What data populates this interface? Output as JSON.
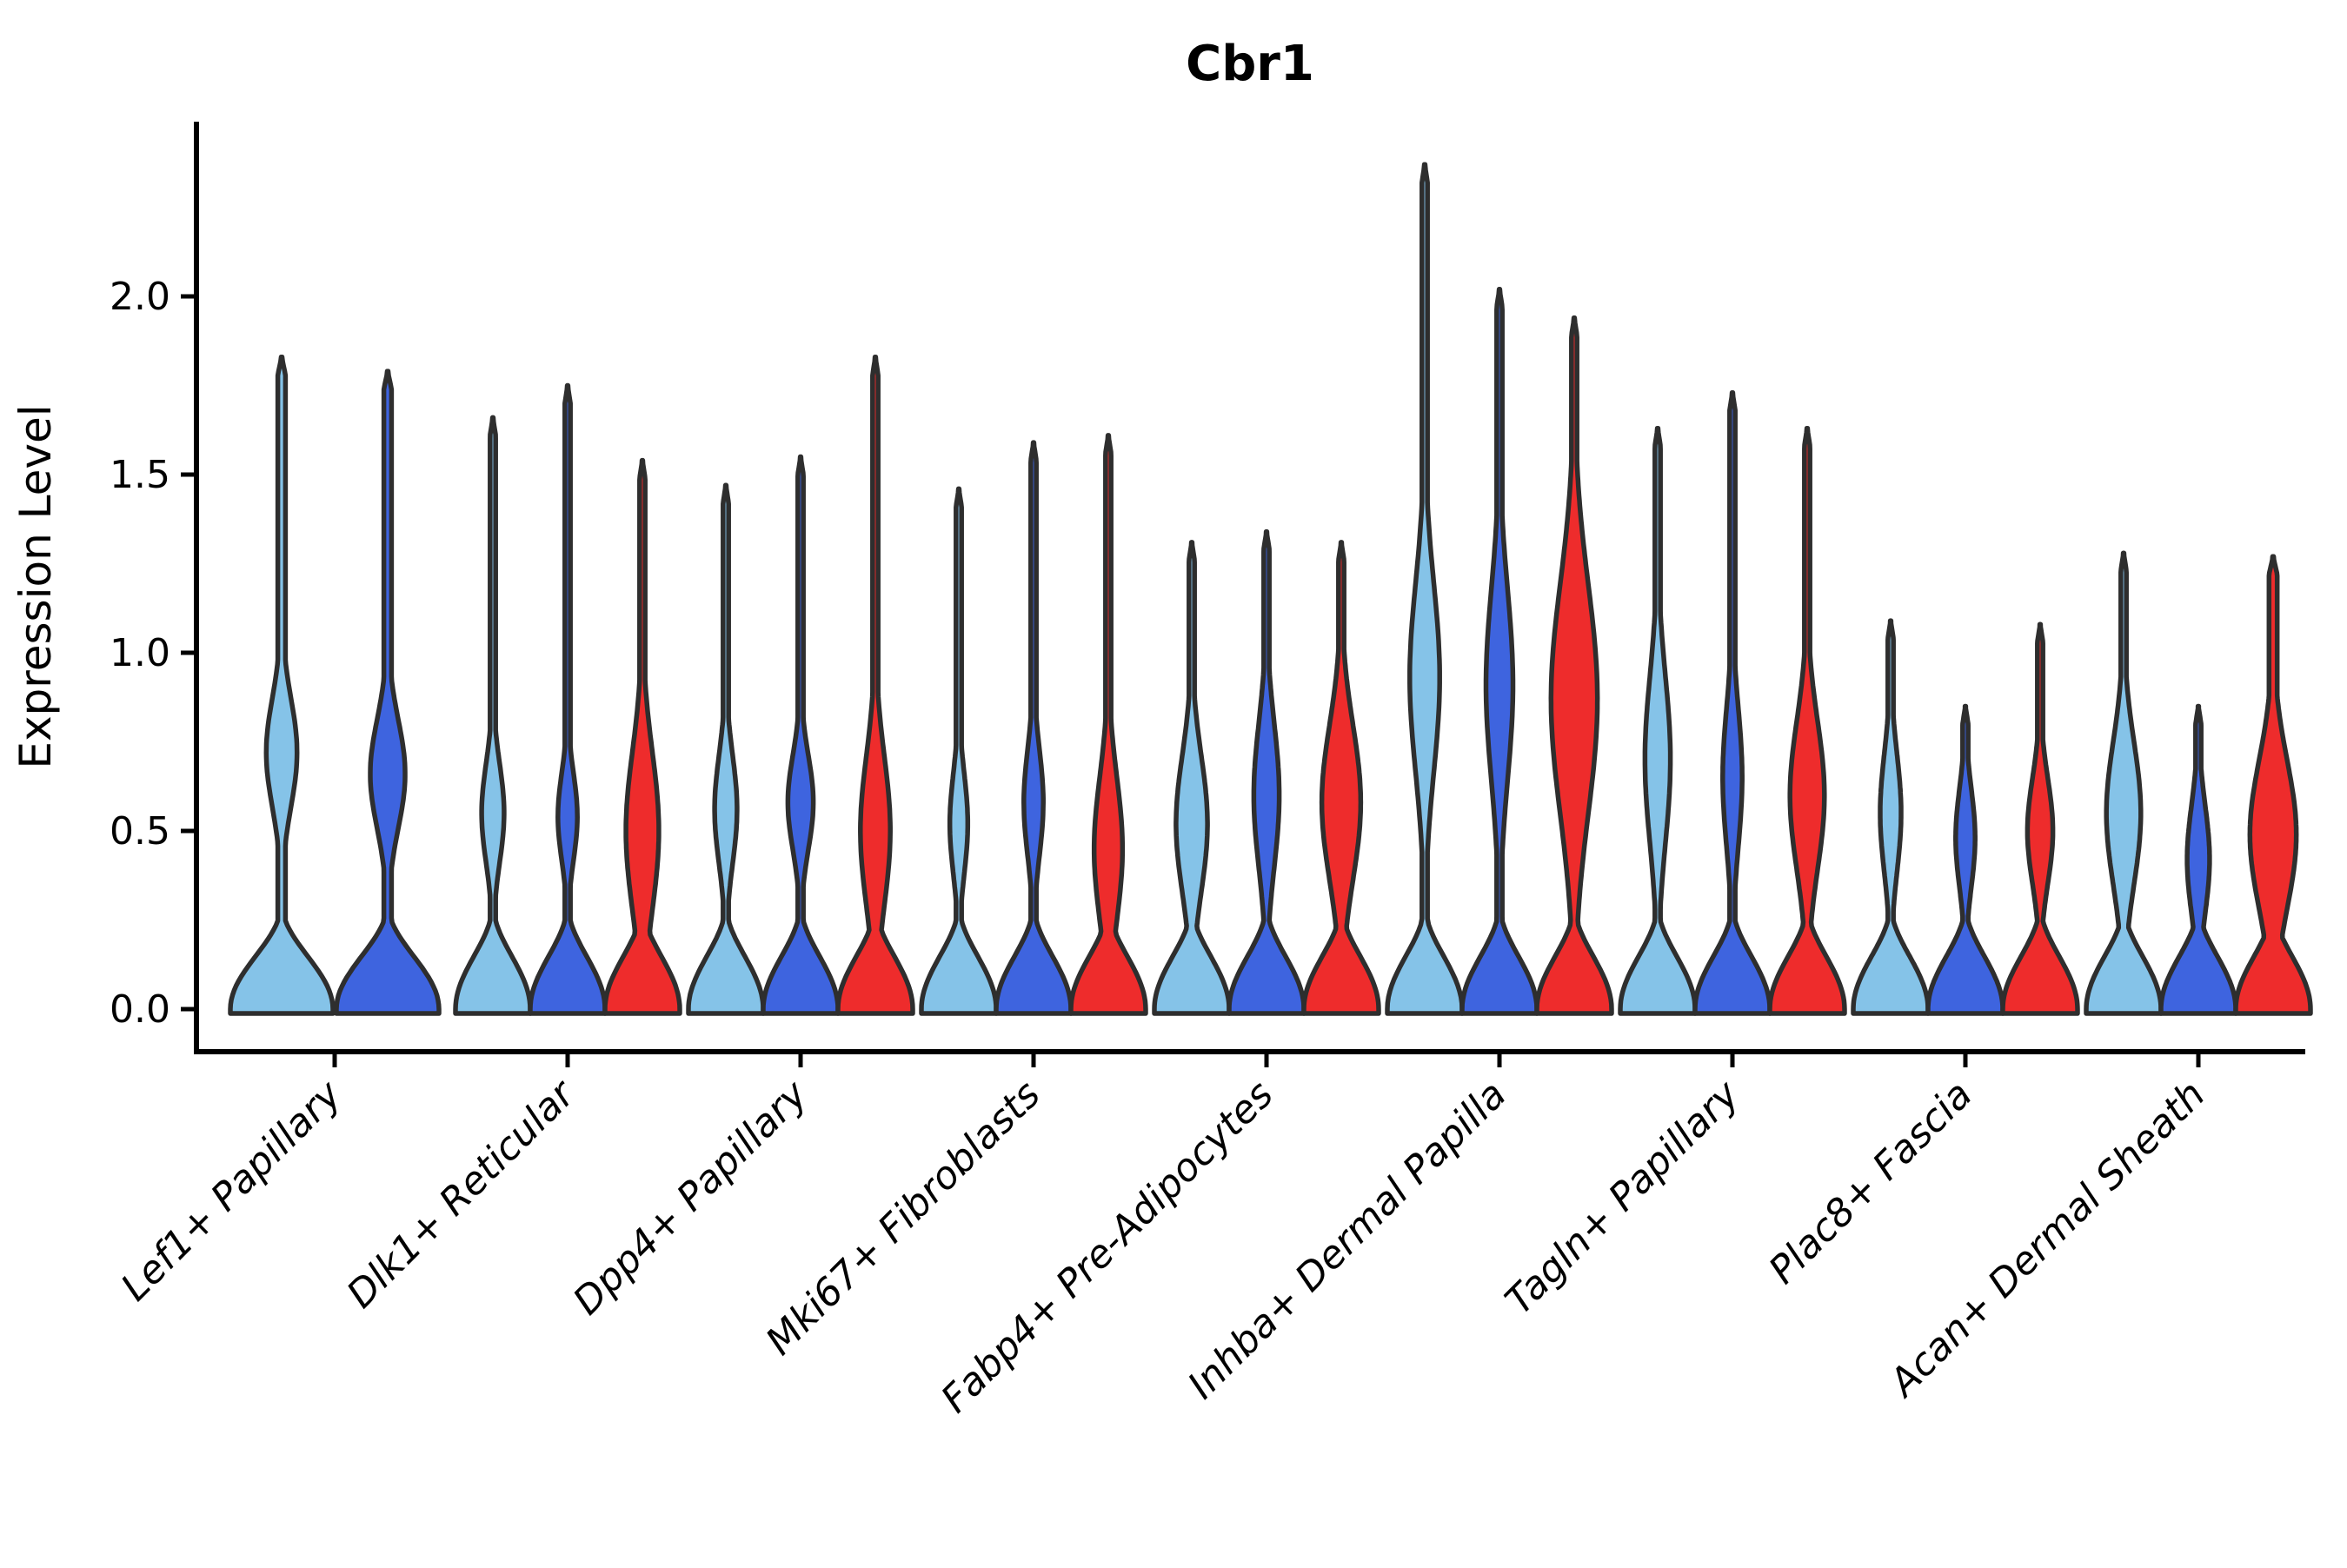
{
  "chart_data": {
    "type": "violin",
    "title": "Cbr1",
    "xlabel": "",
    "ylabel": "Expression Level",
    "ylim": [
      -0.12,
      2.49
    ],
    "yticks": [
      0.0,
      0.5,
      1.0,
      1.5,
      2.0
    ],
    "ytick_labels": [
      "0.0",
      "0.5",
      "1.0",
      "1.5",
      "2.0"
    ],
    "grid": false,
    "legend": "none",
    "series_colors": [
      "#85C3E8",
      "#3E64DF",
      "#EE2C2C"
    ],
    "series_names": [
      "light-blue",
      "dark-blue",
      "red"
    ],
    "outline_color": "#2E2E2E",
    "categories": [
      "Lef1+ Papillary",
      "Dlk1+ Reticular",
      "Dpp4+ Papillary",
      "Mki67+ Fibroblasts",
      "Fabp4+ Pre-Adipocytes",
      "Inhba+ Dermal Papilla",
      "Tagln+ Papillary",
      "Plac8+ Fascia",
      "Acan+ Dermal Sheath"
    ],
    "violins": [
      [
        {
          "series": 0,
          "max": 1.83,
          "bulge": [
            0.45,
            1.0
          ],
          "peak": 0.72,
          "width": 0.3
        },
        {
          "series": 1,
          "max": 1.79,
          "bulge": [
            0.4,
            0.95
          ],
          "peak": 0.66,
          "width": 0.34
        }
      ],
      [
        {
          "series": 0,
          "max": 1.66,
          "bulge": [
            0.3,
            0.8
          ],
          "peak": 0.55,
          "width": 0.3
        },
        {
          "series": 1,
          "max": 1.75,
          "bulge": [
            0.32,
            0.76
          ],
          "peak": 0.54,
          "width": 0.26
        },
        {
          "series": 2,
          "max": 1.54,
          "bulge": [
            0.21,
            1.01
          ],
          "peak": 0.5,
          "width": 0.44
        }
      ],
      [
        {
          "series": 0,
          "max": 1.47,
          "bulge": [
            0.29,
            0.84
          ],
          "peak": 0.56,
          "width": 0.3
        },
        {
          "series": 1,
          "max": 1.55,
          "bulge": [
            0.34,
            0.82
          ],
          "peak": 0.58,
          "width": 0.34
        },
        {
          "series": 2,
          "max": 1.83,
          "bulge": [
            0.23,
            0.98
          ],
          "peak": 0.5,
          "width": 0.4
        }
      ],
      [
        {
          "series": 0,
          "max": 1.46,
          "bulge": [
            0.26,
            0.77
          ],
          "peak": 0.52,
          "width": 0.24
        },
        {
          "series": 1,
          "max": 1.59,
          "bulge": [
            0.32,
            0.86
          ],
          "peak": 0.58,
          "width": 0.26
        },
        {
          "series": 2,
          "max": 1.61,
          "bulge": [
            0.22,
            0.94
          ],
          "peak": 0.45,
          "width": 0.38
        }
      ],
      [
        {
          "series": 0,
          "max": 1.31,
          "bulge": [
            0.24,
            0.93
          ],
          "peak": 0.52,
          "width": 0.42
        },
        {
          "series": 1,
          "max": 1.34,
          "bulge": [
            0.23,
            0.96
          ],
          "peak": 0.6,
          "width": 0.34
        },
        {
          "series": 2,
          "max": 1.31,
          "bulge": [
            0.21,
            0.99
          ],
          "peak": 0.58,
          "width": 0.52
        }
      ],
      [
        {
          "series": 0,
          "max": 2.37,
          "bulge": [
            0.33,
            1.29
          ],
          "peak": 0.93,
          "width": 0.4
        },
        {
          "series": 1,
          "max": 2.02,
          "bulge": [
            0.32,
            1.28
          ],
          "peak": 0.91,
          "width": 0.36
        },
        {
          "series": 2,
          "max": 1.94,
          "bulge": [
            0.24,
            1.4
          ],
          "peak": 0.87,
          "width": 0.62
        }
      ],
      [
        {
          "series": 0,
          "max": 1.63,
          "bulge": [
            0.3,
            1.15
          ],
          "peak": 0.7,
          "width": 0.34
        },
        {
          "series": 1,
          "max": 1.73,
          "bulge": [
            0.3,
            1.0
          ],
          "peak": 0.65,
          "width": 0.26
        },
        {
          "series": 2,
          "max": 1.63,
          "bulge": [
            0.25,
            1.0
          ],
          "peak": 0.6,
          "width": 0.46
        }
      ],
      [
        {
          "series": 0,
          "max": 1.09,
          "bulge": [
            0.3,
            0.9
          ],
          "peak": 0.55,
          "width": 0.28
        },
        {
          "series": 1,
          "max": 0.85,
          "bulge": [
            0.23,
            0.73
          ],
          "peak": 0.48,
          "width": 0.26
        },
        {
          "series": 2,
          "max": 1.08,
          "bulge": [
            0.25,
            0.78
          ],
          "peak": 0.5,
          "width": 0.34
        }
      ],
      [
        {
          "series": 0,
          "max": 1.28,
          "bulge": [
            0.2,
            0.92
          ],
          "peak": 0.55,
          "width": 0.46
        },
        {
          "series": 1,
          "max": 0.85,
          "bulge": [
            0.15,
            0.7
          ],
          "peak": 0.42,
          "width": 0.3
        },
        {
          "series": 2,
          "max": 1.27,
          "bulge": [
            0.2,
            0.95
          ],
          "peak": 0.49,
          "width": 0.62,
          "stem": 0.11
        }
      ]
    ]
  }
}
